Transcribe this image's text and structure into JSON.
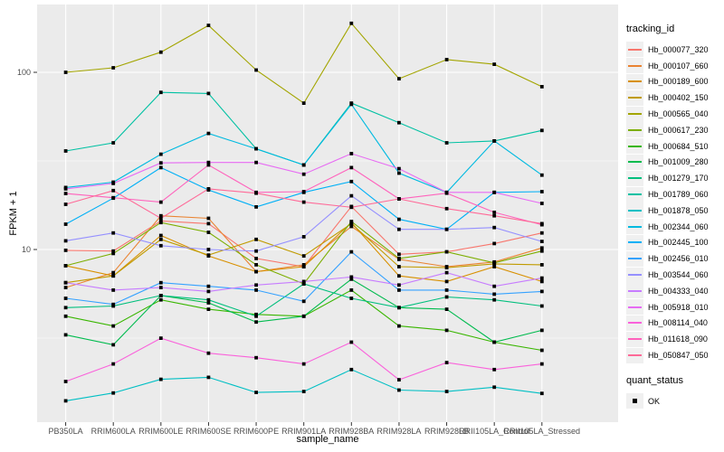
{
  "chart_data": {
    "type": "line",
    "xlabel": "sample_name",
    "ylabel": "FPKM + 1",
    "y_scale": "log10",
    "y_ticks": [
      {
        "label": "100",
        "value": 100
      },
      {
        "label": "10",
        "value": 10
      }
    ],
    "y_minor_values": [
      31.62,
      3.162
    ],
    "legend_position": "right",
    "grid": "on",
    "marker": {
      "shape": "square",
      "color": "#000000",
      "meaning": "quant_status OK"
    },
    "categories": [
      "PB350LA",
      "RRIM600LA",
      "RRIM600LE",
      "RRIM600SE",
      "RRIM600PE",
      "RRIM901LA",
      "RRIM928BA",
      "RRIM928LA",
      "RRIM928LB",
      "RRII105LA_Control",
      "RRII105LA_Stressed"
    ],
    "series": [
      {
        "name": "Hb_000077_320",
        "color": "#F8766D",
        "values": [
          9.9,
          9.8,
          14.5,
          14.0,
          8.9,
          8.0,
          17.5,
          9.4,
          9.7,
          10.8,
          12.4
        ]
      },
      {
        "name": "Hb_000107_660",
        "color": "#EA8331",
        "values": [
          6.1,
          7.4,
          15.5,
          15.0,
          7.5,
          8.2,
          13.5,
          8.8,
          8.0,
          8.5,
          10.2
        ]
      },
      {
        "name": "Hb_000189_600",
        "color": "#D89000",
        "values": [
          8.1,
          7.1,
          12.0,
          9.2,
          7.5,
          8.0,
          14.2,
          7.1,
          6.6,
          8.0,
          6.6
        ]
      },
      {
        "name": "Hb_000402_150",
        "color": "#C09B00",
        "values": [
          6.5,
          7.1,
          11.4,
          9.3,
          11.4,
          9.2,
          14.0,
          8.0,
          7.9,
          8.3,
          8.2
        ]
      },
      {
        "name": "Hb_000565_040",
        "color": "#A3A500",
        "values": [
          100,
          106,
          130,
          184,
          103,
          67,
          189,
          92,
          118,
          111,
          83
        ]
      },
      {
        "name": "Hb_000617_230",
        "color": "#7CAE00",
        "values": [
          8.1,
          9.5,
          14.2,
          12.5,
          8.2,
          6.4,
          14.4,
          8.9,
          9.7,
          8.4,
          9.8
        ]
      },
      {
        "name": "Hb_000684_510",
        "color": "#39B600",
        "values": [
          4.2,
          3.7,
          5.2,
          4.6,
          4.3,
          4.2,
          5.9,
          3.7,
          3.5,
          3.0,
          2.7
        ]
      },
      {
        "name": "Hb_001009_280",
        "color": "#00BB4E",
        "values": [
          3.3,
          2.9,
          5.5,
          5.0,
          3.9,
          4.2,
          6.8,
          4.7,
          4.6,
          3.0,
          3.5
        ]
      },
      {
        "name": "Hb_001279_170",
        "color": "#00BF7D",
        "values": [
          4.7,
          4.8,
          5.5,
          5.2,
          4.2,
          6.4,
          5.3,
          4.7,
          5.4,
          5.2,
          4.8
        ]
      },
      {
        "name": "Hb_001789_060",
        "color": "#00C1A3",
        "values": [
          36,
          40,
          77,
          76,
          37,
          30,
          67,
          52,
          40,
          41,
          47
        ]
      },
      {
        "name": "Hb_001878_050",
        "color": "#00BFC4",
        "values": [
          1.4,
          1.55,
          1.85,
          1.9,
          1.56,
          1.58,
          2.1,
          1.61,
          1.58,
          1.67,
          1.54
        ]
      },
      {
        "name": "Hb_002344_060",
        "color": "#00BAE0",
        "values": [
          22.4,
          24,
          34.5,
          45.2,
          37,
          30,
          66,
          27,
          21,
          41,
          26.3
        ]
      },
      {
        "name": "Hb_002445_100",
        "color": "#00B0F6",
        "values": [
          13.9,
          19.5,
          29,
          21.7,
          17.4,
          21,
          24.2,
          14.8,
          13,
          21,
          21.2
        ]
      },
      {
        "name": "Hb_002456_010",
        "color": "#35A2FF",
        "values": [
          5.3,
          4.9,
          6.5,
          6.2,
          5.9,
          5.1,
          9.7,
          5.9,
          5.9,
          5.6,
          5.8
        ]
      },
      {
        "name": "Hb_003544_060",
        "color": "#9590FF",
        "values": [
          11.2,
          12.4,
          10.5,
          10.0,
          9.8,
          11.8,
          20.1,
          13.0,
          13.0,
          13.3,
          11.1
        ]
      },
      {
        "name": "Hb_004333_040",
        "color": "#C77CFF",
        "values": [
          6.5,
          5.9,
          6.1,
          5.8,
          6.3,
          6.6,
          7.0,
          6.3,
          7.4,
          6.2,
          6.9
        ]
      },
      {
        "name": "Hb_005918_010",
        "color": "#E76BF3",
        "values": [
          22.0,
          23.6,
          30.8,
          31.0,
          31.0,
          26.6,
          34.8,
          28.6,
          21.0,
          21.0,
          18.2
        ]
      },
      {
        "name": "Hb_008114_040",
        "color": "#FA62DB",
        "values": [
          1.8,
          2.26,
          3.16,
          2.6,
          2.45,
          2.26,
          3.0,
          1.84,
          2.3,
          2.1,
          2.26
        ]
      },
      {
        "name": "Hb_011618_090",
        "color": "#FF62BC",
        "values": [
          20.7,
          19.6,
          18.5,
          30.0,
          21.0,
          21.2,
          29.0,
          19.3,
          20.8,
          16.2,
          13.8
        ]
      },
      {
        "name": "Hb_050847_050",
        "color": "#FF6A98",
        "values": [
          18.0,
          21.5,
          15.0,
          22.0,
          20.8,
          18.5,
          17.3,
          19.3,
          17.0,
          15.5,
          14.0
        ]
      }
    ]
  },
  "legend": {
    "tracking_title": "tracking_id",
    "quant_title": "quant_status",
    "quant_ok_label": "OK"
  },
  "colors": {
    "panel_bg": "#EBEBEB",
    "grid": "#FFFFFF",
    "marker": "#000000",
    "axis_text": "#4D4D4D",
    "tick_mark": "#333333",
    "legend_key_bg": "#F0F0F0"
  }
}
